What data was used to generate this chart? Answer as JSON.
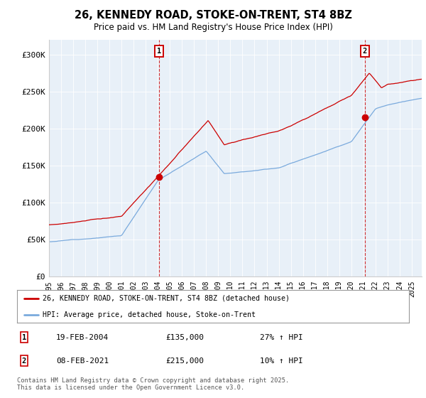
{
  "title_line1": "26, KENNEDY ROAD, STOKE-ON-TRENT, ST4 8BZ",
  "title_line2": "Price paid vs. HM Land Registry's House Price Index (HPI)",
  "ylim": [
    0,
    320000
  ],
  "yticks": [
    0,
    50000,
    100000,
    150000,
    200000,
    250000,
    300000
  ],
  "ytick_labels": [
    "£0",
    "£50K",
    "£100K",
    "£150K",
    "£200K",
    "£250K",
    "£300K"
  ],
  "line1_color": "#cc0000",
  "line2_color": "#7aaadd",
  "vline_color": "#cc0000",
  "marker1_date": 2004.12,
  "marker2_date": 2021.11,
  "marker1_price": 135000,
  "marker2_price": 215000,
  "legend_label1": "26, KENNEDY ROAD, STOKE-ON-TRENT, ST4 8BZ (detached house)",
  "legend_label2": "HPI: Average price, detached house, Stoke-on-Trent",
  "annotation1_date": "19-FEB-2004",
  "annotation1_price": "£135,000",
  "annotation1_hpi": "27% ↑ HPI",
  "annotation2_date": "08-FEB-2021",
  "annotation2_price": "£215,000",
  "annotation2_hpi": "10% ↑ HPI",
  "footer": "Contains HM Land Registry data © Crown copyright and database right 2025.\nThis data is licensed under the Open Government Licence v3.0.",
  "xmin": 1995.0,
  "xmax": 2025.83,
  "xticks": [
    1995,
    1996,
    1997,
    1998,
    1999,
    2000,
    2001,
    2002,
    2003,
    2004,
    2005,
    2006,
    2007,
    2008,
    2009,
    2010,
    2011,
    2012,
    2013,
    2014,
    2015,
    2016,
    2017,
    2018,
    2019,
    2020,
    2021,
    2022,
    2023,
    2024,
    2025
  ],
  "background_color": "#ffffff",
  "plot_bg_color": "#e8f0f8",
  "grid_color": "#ffffff"
}
